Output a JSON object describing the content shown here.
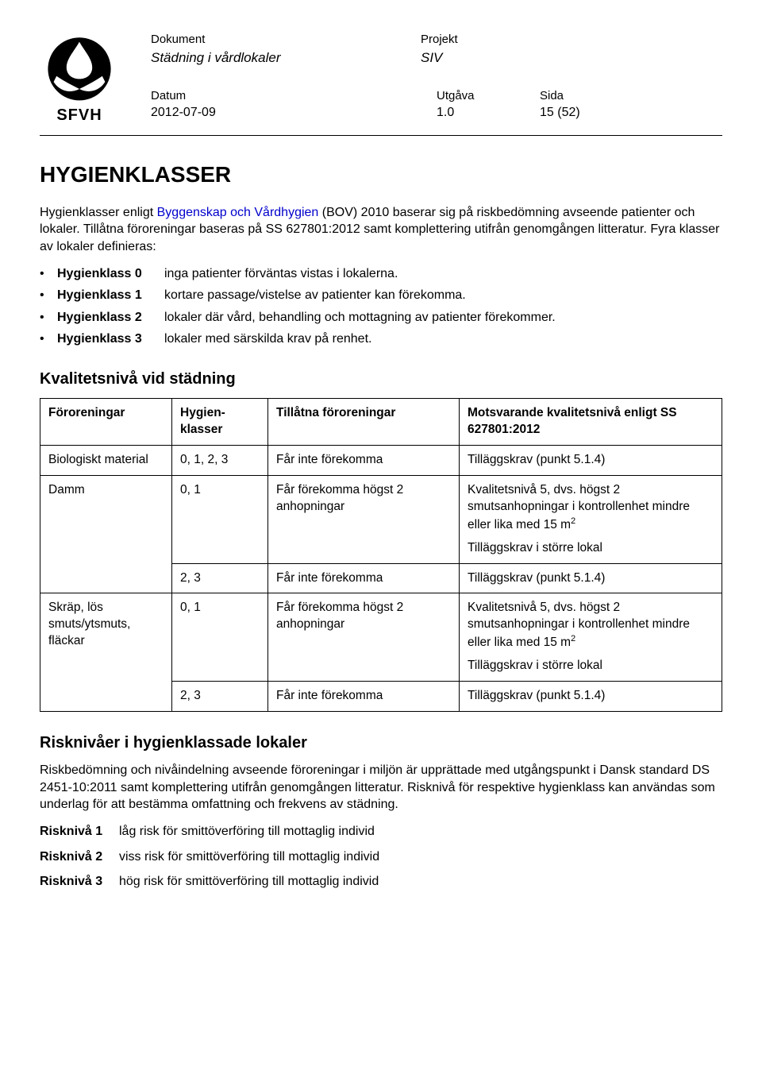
{
  "header": {
    "logo_text": "SFVH",
    "doc_label": "Dokument",
    "doc_value": "Städning i vårdlokaler",
    "proj_label": "Projekt",
    "proj_value": "SIV",
    "date_label": "Datum",
    "date_value": "2012-07-09",
    "edition_label": "Utgåva",
    "edition_value": "1.0",
    "page_label": "Sida",
    "page_value": "15 (52)"
  },
  "title": "HYGIENKLASSER",
  "intro": {
    "part1": "Hygienklasser enligt ",
    "link": "Byggenskap och Vårdhygien",
    "part2": " (BOV) 2010 baserar sig på riskbedömning avseende patienter och lokaler. Tillåtna föroreningar baseras på SS 627801:2012 samt komplettering utifrån genomgången litteratur. Fyra klasser av lokaler definieras:"
  },
  "klasser": [
    {
      "name": "Hygienklass 0",
      "desc": "inga patienter förväntas vistas i lokalerna."
    },
    {
      "name": "Hygienklass 1",
      "desc": "kortare passage/vistelse av patienter kan förekomma."
    },
    {
      "name": "Hygienklass 2",
      "desc": "lokaler där vård, behandling och mottagning av patienter förekommer."
    },
    {
      "name": "Hygienklass 3",
      "desc": "lokaler med särskilda krav på renhet."
    }
  ],
  "kvalitet_heading": "Kvalitetsnivå vid städning",
  "table": {
    "headers": [
      "Föroreningar",
      "Hygien-klasser",
      "Tillåtna föroreningar",
      "Motsvarande kvalitetsnivå enligt SS 627801:2012"
    ],
    "rows": [
      {
        "c0": "Biologiskt material",
        "c1": "0, 1, 2, 3",
        "c2": "Får inte förekomma",
        "c3": "Tilläggskrav (punkt 5.1.4)",
        "rs0": 1
      },
      {
        "c0": "Damm",
        "c1": "0, 1",
        "c2": "Får förekomma högst 2 anhopningar",
        "c3": "Kvalitetsnivå 5, dvs. högst 2 smutsanhopningar i kontrollenhet mindre eller lika med 15 m²\nTilläggskrav i större lokal",
        "rs0": 2
      },
      {
        "c0": "",
        "c1": "2, 3",
        "c2": "Får inte förekomma",
        "c3": "Tilläggskrav (punkt 5.1.4)",
        "rs0": 0
      },
      {
        "c0": "Skräp, lös smuts/ytsmuts, fläckar",
        "c1": "0, 1",
        "c2": "Får förekomma högst 2 anhopningar",
        "c3": "Kvalitetsnivå 5, dvs. högst 2 smutsanhopningar i kontrollenhet mindre eller lika med 15 m²\nTilläggskrav i större lokal",
        "rs0": 2
      },
      {
        "c0": "",
        "c1": "2, 3",
        "c2": "Får inte förekomma",
        "c3": "Tilläggskrav (punkt 5.1.4)",
        "rs0": 0
      }
    ]
  },
  "risk_heading": "Risknivåer i hygienklassade lokaler",
  "risk_intro": "Riskbedömning och nivåindelning avseende föroreningar i miljön är upprättade med utgångspunkt i Dansk standard DS 2451-10:2011 samt komplettering utifrån genomgången litteratur. Risknivå för respektive hygienklass kan användas som underlag för att bestämma omfattning och frekvens av städning.",
  "risks": [
    {
      "name": "Risknivå 1",
      "desc": "låg risk för smittöverföring till mottaglig individ"
    },
    {
      "name": "Risknivå 2",
      "desc": "viss risk för smittöverföring till mottaglig individ"
    },
    {
      "name": "Risknivå 3",
      "desc": "hög risk för smittöverföring till mottaglig individ"
    }
  ]
}
